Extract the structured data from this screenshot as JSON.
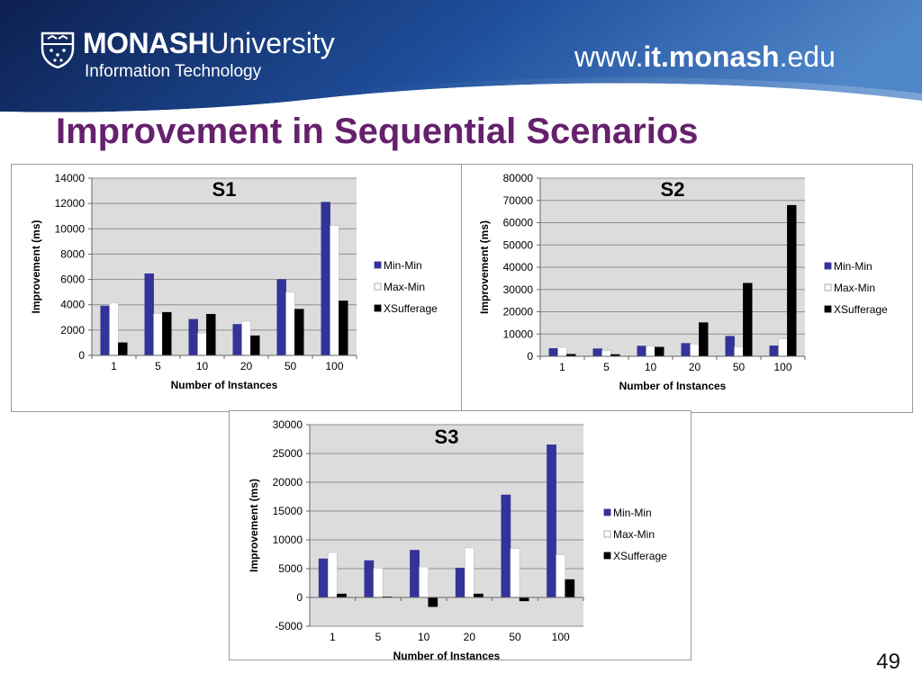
{
  "header": {
    "brand_bold": "MONASH",
    "brand_light": "University",
    "subtitle": "Information Technology",
    "url_prefix": "www.",
    "url_bold": "it.monash",
    "url_suffix": ".edu",
    "colors": {
      "dark": "#0d2050",
      "mid": "#1f4f9c",
      "light": "#4f86c8"
    }
  },
  "slide": {
    "title": "Improvement in Sequential Scenarios",
    "page_number": "49",
    "title_color": "#66206e"
  },
  "chart_data": [
    {
      "type": "bar",
      "title": "S1",
      "xlabel": "Number of Instances",
      "ylabel": "Improvement (ms)",
      "categories": [
        "1",
        "5",
        "10",
        "20",
        "50",
        "100"
      ],
      "ylim": [
        0,
        14000
      ],
      "yticks": [
        0,
        2000,
        4000,
        6000,
        8000,
        10000,
        12000,
        14000
      ],
      "series": [
        {
          "name": "Min-Min",
          "color": "#333399",
          "values": [
            3900,
            6450,
            2850,
            2450,
            6000,
            12100
          ]
        },
        {
          "name": "Max-Min",
          "color": "#ffffff",
          "values": [
            4150,
            3300,
            1750,
            2700,
            5000,
            10250
          ]
        },
        {
          "name": "XSufferage",
          "color": "#000000",
          "values": [
            1000,
            3400,
            3250,
            1550,
            3650,
            4300
          ]
        }
      ],
      "grid": true,
      "legend": "right"
    },
    {
      "type": "bar",
      "title": "S2",
      "xlabel": "Number of Instances",
      "ylabel": "Improvement (ms)",
      "categories": [
        "1",
        "5",
        "10",
        "20",
        "50",
        "100"
      ],
      "ylim": [
        0,
        80000
      ],
      "yticks": [
        0,
        10000,
        20000,
        30000,
        40000,
        50000,
        60000,
        70000,
        80000
      ],
      "series": [
        {
          "name": "Min-Min",
          "color": "#333399",
          "values": [
            3500,
            3400,
            4600,
            5800,
            9000,
            4700
          ]
        },
        {
          "name": "Max-Min",
          "color": "#ffffff",
          "values": [
            4000,
            2500,
            4600,
            5500,
            4200,
            7800
          ]
        },
        {
          "name": "XSufferage",
          "color": "#000000",
          "values": [
            900,
            800,
            4100,
            15100,
            32800,
            67800
          ]
        }
      ],
      "grid": true,
      "legend": "right"
    },
    {
      "type": "bar",
      "title": "S3",
      "xlabel": "Number of Instances",
      "ylabel": "Improvement (ms)",
      "categories": [
        "1",
        "5",
        "10",
        "20",
        "50",
        "100"
      ],
      "ylim": [
        -5000,
        30000
      ],
      "yticks": [
        -5000,
        0,
        5000,
        10000,
        15000,
        20000,
        25000,
        30000
      ],
      "series": [
        {
          "name": "Min-Min",
          "color": "#333399",
          "values": [
            6700,
            6400,
            8200,
            5100,
            17800,
            26500
          ]
        },
        {
          "name": "Max-Min",
          "color": "#ffffff",
          "values": [
            7800,
            5100,
            5300,
            8600,
            8500,
            7400
          ]
        },
        {
          "name": "XSufferage",
          "color": "#000000",
          "values": [
            600,
            100,
            -1600,
            600,
            -600,
            3100
          ]
        }
      ],
      "grid": true,
      "legend": "right"
    }
  ]
}
